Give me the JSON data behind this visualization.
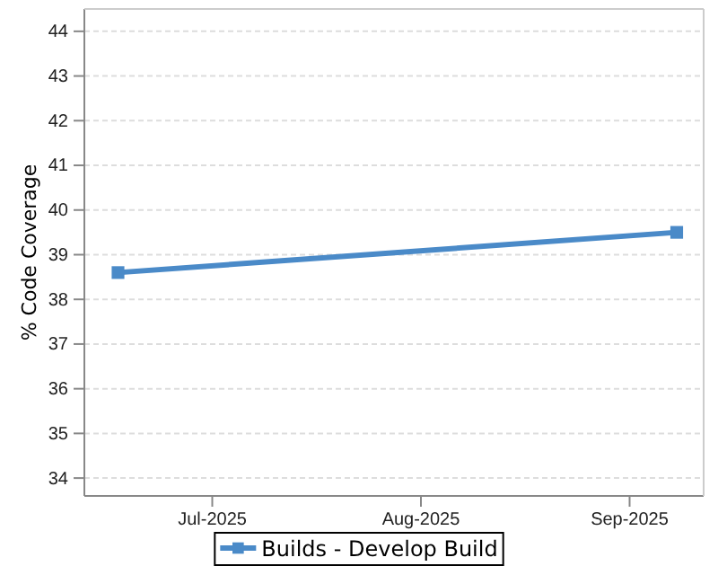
{
  "chart_data": {
    "type": "line",
    "ylabel": "% Code Coverage",
    "x": [
      "2025-06-17",
      "2025-09-08"
    ],
    "series": [
      {
        "name": "Builds - Develop Build",
        "color": "#4a8ac8",
        "values": [
          38.6,
          39.5
        ]
      }
    ],
    "xlim": [
      "2025-06-12",
      "2025-09-12"
    ],
    "xticks": [
      {
        "value": "2025-07-01",
        "label": "Jul-2025"
      },
      {
        "value": "2025-08-01",
        "label": "Aug-2025"
      },
      {
        "value": "2025-09-01",
        "label": "Sep-2025"
      }
    ],
    "ylim": [
      33.6,
      44.5
    ],
    "yticks": [
      34,
      35,
      36,
      37,
      38,
      39,
      40,
      41,
      42,
      43,
      44
    ],
    "grid": "y",
    "legend": "bottom",
    "marker": "square",
    "line_style": "solid"
  }
}
